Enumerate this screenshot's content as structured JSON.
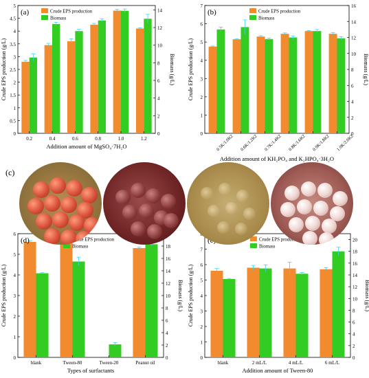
{
  "colors": {
    "eps": "#f28a2e",
    "biomass": "#33cc22",
    "error": "#3ad6f0"
  },
  "photo_label": "(c)",
  "chart_data": [
    {
      "id": "a",
      "type": "bar",
      "panel_label": "(a)",
      "categories": [
        "0.2",
        "0.4",
        "0.6",
        "0.8",
        "1.0",
        "1.2"
      ],
      "series": [
        {
          "name": "Crude EPS production",
          "axis": "left",
          "values": [
            2.8,
            3.45,
            3.6,
            4.25,
            4.8,
            4.1
          ],
          "errors": [
            0.05,
            0.07,
            0.1,
            0.05,
            0.05,
            0.03
          ]
        },
        {
          "name": "Biomass",
          "axis": "right",
          "values": [
            8.6,
            12.4,
            11.6,
            12.8,
            13.9,
            13.0
          ],
          "errors": [
            0.4,
            0.2,
            0.2,
            0.2,
            0.2,
            0.5
          ]
        }
      ],
      "xlabel": "Addition amount of MgSO₄·7H₂O",
      "ylabel_left": "Crude EPS production (g/L)",
      "ylim_left": [
        0,
        5
      ],
      "yticks_left": [
        0,
        0.5,
        1.0,
        1.5,
        2.0,
        2.5,
        3.0,
        3.5,
        4.0,
        4.5,
        5.0
      ],
      "ylabel_right": "Biomass (g/L)",
      "ylim_right": [
        0,
        14.5
      ],
      "yticks_right": [
        0,
        2,
        4,
        6,
        8,
        10,
        12,
        14
      ],
      "legend": "top-left"
    },
    {
      "id": "b",
      "type": "bar",
      "panel_label": "(b)",
      "categories": [
        "0.5K/1.0K2",
        "0.6K/1.2K2",
        "0.7K/1.4K2",
        "0.8K/1.6K2",
        "0.9K/1.8K2",
        "1.0K/2.0K2"
      ],
      "series": [
        {
          "name": "Crude EPS production",
          "axis": "left",
          "values": [
            4.75,
            5.15,
            5.3,
            5.45,
            5.6,
            5.45
          ],
          "errors": [
            0.03,
            0.03,
            0.05,
            0.05,
            0.03,
            0.07
          ]
        },
        {
          "name": "Biomass",
          "axis": "right",
          "values": [
            13.0,
            13.3,
            11.8,
            12.0,
            12.8,
            11.9
          ],
          "errors": [
            0.3,
            0.9,
            0.1,
            0.2,
            0.2,
            0.2
          ]
        }
      ],
      "xlabel": "Addition amount of KH₂PO₄ and K₂HPO₄·3H₂O",
      "ylabel_left": "Crude EPS production (g/L)",
      "ylim_left": [
        0,
        7
      ],
      "yticks_left": [
        0,
        1,
        2,
        3,
        4,
        5,
        6,
        7
      ],
      "ylabel_right": "Biomass (g/L)",
      "ylim_right": [
        0,
        16
      ],
      "yticks_right": [
        0,
        2,
        4,
        6,
        8,
        10,
        12,
        14,
        16
      ],
      "legend": "top-center"
    },
    {
      "id": "d",
      "type": "bar",
      "panel_label": "(d)",
      "categories": [
        "blank",
        "Tween-80",
        "Tween-20",
        "Peanut oil"
      ],
      "series": [
        {
          "name": "Crude EPS production",
          "axis": "left",
          "values": [
            5.6,
            5.8,
            0,
            5.3
          ],
          "errors": [
            0.05,
            0.03,
            0,
            0.05
          ]
        },
        {
          "name": "Biomass",
          "axis": "right",
          "values": [
            13.6,
            15.5,
            2.1,
            18.3
          ],
          "errors": [
            0.1,
            0.7,
            0.3,
            0.3
          ]
        }
      ],
      "xlabel": "Types of surfactants",
      "ylabel_left": "Crude EPS production (g/L)",
      "ylim_left": [
        0,
        6
      ],
      "yticks_left": [
        0,
        1,
        2,
        3,
        4,
        5,
        6
      ],
      "ylabel_right": "Biomass (g/L)",
      "ylim_right": [
        0,
        20
      ],
      "yticks_right": [
        0,
        2,
        4,
        6,
        8,
        10,
        12,
        14,
        16,
        18,
        20
      ],
      "legend": "top-center"
    },
    {
      "id": "e",
      "type": "bar",
      "panel_label": "(e)",
      "categories": [
        "blank",
        "2 mL/L",
        "4 mL/L",
        "6 mL/L"
      ],
      "series": [
        {
          "name": "Crude EPS production",
          "axis": "left",
          "values": [
            5.6,
            5.8,
            5.75,
            5.7
          ],
          "errors": [
            0.15,
            0.15,
            0.4,
            0.1
          ]
        },
        {
          "name": "Biomass",
          "axis": "right",
          "values": [
            13.3,
            15.1,
            14.2,
            18.0
          ],
          "errors": [
            0.1,
            0.6,
            0.2,
            0.7
          ]
        }
      ],
      "xlabel": "Addition amount of Tween-80",
      "ylabel_left": "Crude EPS production (g/L)",
      "ylim_left": [
        0,
        8
      ],
      "yticks_left": [
        0,
        1,
        2,
        3,
        4,
        5,
        6,
        7,
        8
      ],
      "ylabel_right": "Biomass (g/L)",
      "ylim_right": [
        0,
        21
      ],
      "yticks_right": [
        0,
        2,
        4,
        6,
        8,
        10,
        12,
        14,
        16,
        18,
        20
      ],
      "legend": "top-center"
    }
  ]
}
